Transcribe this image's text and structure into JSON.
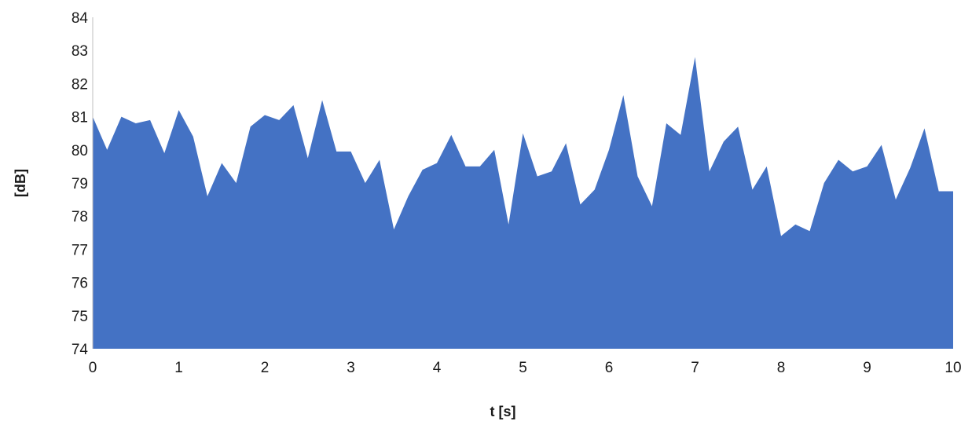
{
  "chart_data": {
    "type": "area",
    "title": "",
    "xlabel": "t [s]",
    "ylabel": "[dB]",
    "xlim": [
      0,
      10
    ],
    "ylim": [
      74,
      84
    ],
    "x_ticks": [
      "0",
      "1",
      "2",
      "3",
      "4",
      "5",
      "6",
      "7",
      "8",
      "9",
      "10"
    ],
    "y_ticks": [
      "74",
      "75",
      "76",
      "77",
      "78",
      "79",
      "80",
      "81",
      "82",
      "83",
      "84"
    ],
    "grid": false,
    "legend": "none",
    "fill_color": "#4472c4",
    "series": [
      {
        "x": [
          0,
          0.167,
          0.333,
          0.5,
          0.667,
          0.833,
          1.0,
          1.167,
          1.333,
          1.5,
          1.667,
          1.833,
          2.0,
          2.167,
          2.333,
          2.5,
          2.667,
          2.833,
          3.0,
          3.167,
          3.333,
          3.5,
          3.667,
          3.833,
          4.0,
          4.167,
          4.333,
          4.5,
          4.667,
          4.833,
          5.0,
          5.167,
          5.333,
          5.5,
          5.667,
          5.833,
          6.0,
          6.167,
          6.333,
          6.5,
          6.667,
          6.833,
          7.0,
          7.167,
          7.333,
          7.5,
          7.667,
          7.833,
          8.0,
          8.167,
          8.333,
          8.5,
          8.667,
          8.833,
          9.0,
          9.167,
          9.333,
          9.5,
          9.667,
          9.833,
          10.0
        ],
        "values": [
          81.0,
          80.0,
          81.0,
          80.8,
          80.9,
          79.9,
          81.2,
          80.4,
          78.6,
          79.6,
          79.0,
          80.7,
          81.05,
          80.9,
          81.35,
          79.75,
          81.5,
          79.95,
          79.95,
          79.0,
          79.7,
          77.6,
          78.6,
          79.4,
          79.6,
          80.45,
          79.5,
          79.5,
          80.0,
          77.75,
          80.5,
          79.2,
          79.35,
          80.2,
          78.35,
          78.8,
          80.0,
          81.65,
          79.2,
          78.3,
          80.8,
          80.45,
          82.8,
          79.35,
          80.25,
          80.7,
          78.8,
          79.5,
          77.4,
          77.75,
          77.55,
          79.0,
          79.7,
          79.35,
          79.5,
          80.15,
          78.5,
          79.45,
          80.65,
          78.75,
          78.75
        ]
      }
    ]
  }
}
